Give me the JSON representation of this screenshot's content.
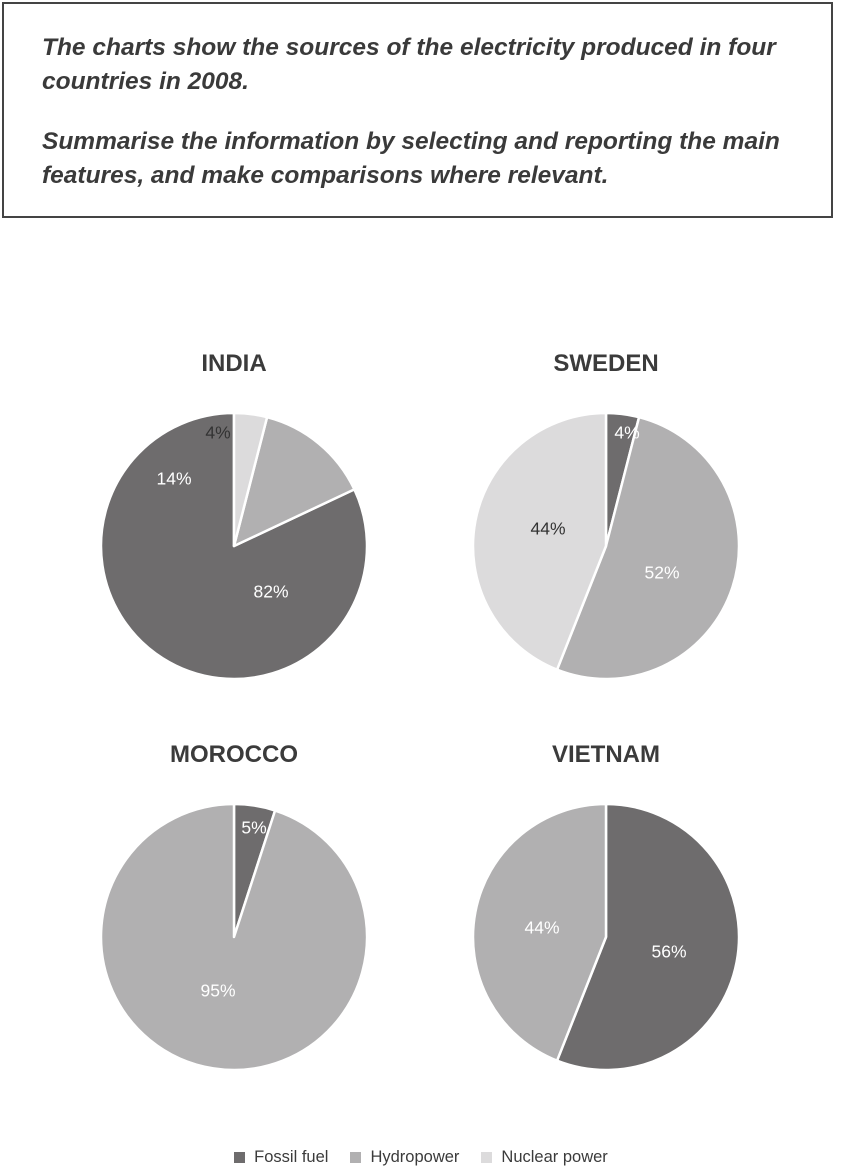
{
  "prompt": {
    "text1": "The charts show the sources of the electricity produced in four countries in 2008.",
    "text2": "Summarise the information by selecting and reporting the main features, and make comparisons where relevant."
  },
  "colors": {
    "Fossil fuel": "#6e6c6d",
    "Hydropower": "#b1b0b1",
    "Nuclear power": "#dcdbdc"
  },
  "legend": [
    "Fossil fuel",
    "Hydropower",
    "Nuclear power"
  ],
  "chart_data": [
    {
      "type": "pie",
      "title": "INDIA",
      "slices": [
        {
          "label": "Fossil fuel",
          "value": 82,
          "text": "82%"
        },
        {
          "label": "Hydropower",
          "value": 14,
          "text": "14%"
        },
        {
          "label": "Nuclear power",
          "value": 4,
          "text": "4%"
        }
      ]
    },
    {
      "type": "pie",
      "title": "SWEDEN",
      "slices": [
        {
          "label": "Fossil fuel",
          "value": 4,
          "text": "4%"
        },
        {
          "label": "Hydropower",
          "value": 52,
          "text": "52%"
        },
        {
          "label": "Nuclear power",
          "value": 44,
          "text": "44%"
        }
      ]
    },
    {
      "type": "pie",
      "title": "MOROCCO",
      "slices": [
        {
          "label": "Fossil fuel",
          "value": 5,
          "text": "5%"
        },
        {
          "label": "Hydropower",
          "value": 95,
          "text": "95%"
        }
      ]
    },
    {
      "type": "pie",
      "title": "VIETNAM",
      "slices": [
        {
          "label": "Fossil fuel",
          "value": 56,
          "text": "56%"
        },
        {
          "label": "Hydropower",
          "value": 44,
          "text": "44%"
        }
      ]
    }
  ]
}
